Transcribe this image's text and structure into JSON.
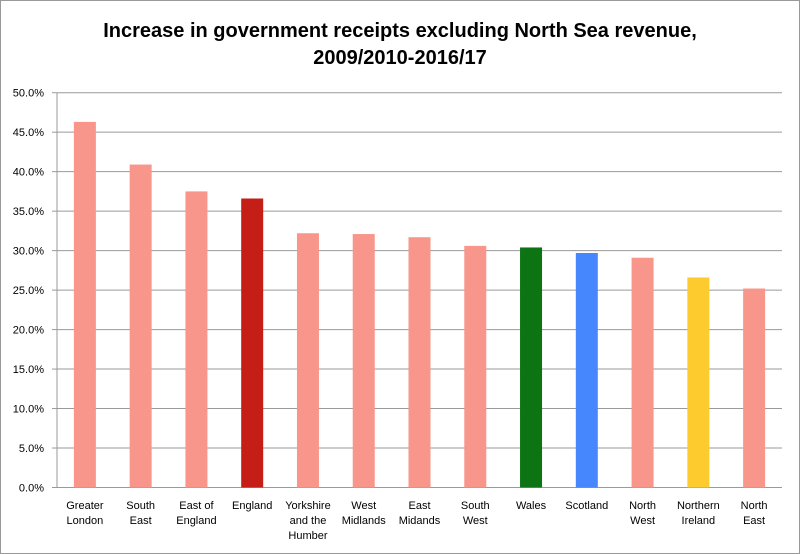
{
  "chart_data": {
    "type": "bar",
    "title_line1": "Increase in government receipts excluding North Sea revenue,",
    "title_line2": "2009/2010-2016/17",
    "xlabel": "",
    "ylabel": "",
    "ylim": [
      0,
      50
    ],
    "yticks": [
      "0.0%",
      "5.0%",
      "10.0%",
      "15.0%",
      "20.0%",
      "25.0%",
      "30.0%",
      "35.0%",
      "40.0%",
      "45.0%",
      "50.0%"
    ],
    "grid": true,
    "categories": [
      [
        "Greater",
        "London"
      ],
      [
        "South",
        "East"
      ],
      [
        "East of",
        "England"
      ],
      [
        "England"
      ],
      [
        "Yorkshire",
        "and the",
        "Humber"
      ],
      [
        "West",
        "Midlands"
      ],
      [
        "East",
        "Midands"
      ],
      [
        "South",
        "West"
      ],
      [
        "Wales"
      ],
      [
        "Scotland"
      ],
      [
        "North",
        "West"
      ],
      [
        "Northern",
        "Ireland"
      ],
      [
        "North",
        "East"
      ]
    ],
    "values": [
      46.3,
      40.9,
      37.5,
      36.6,
      32.2,
      32.1,
      31.7,
      30.6,
      30.4,
      29.7,
      29.1,
      26.6,
      25.2
    ],
    "colors": [
      "#f9968b",
      "#f9968b",
      "#f9968b",
      "#c41e16",
      "#f9968b",
      "#f9968b",
      "#f9968b",
      "#f9968b",
      "#0c7412",
      "#4787fd",
      "#f9968b",
      "#fecb2f",
      "#f9968b"
    ]
  }
}
